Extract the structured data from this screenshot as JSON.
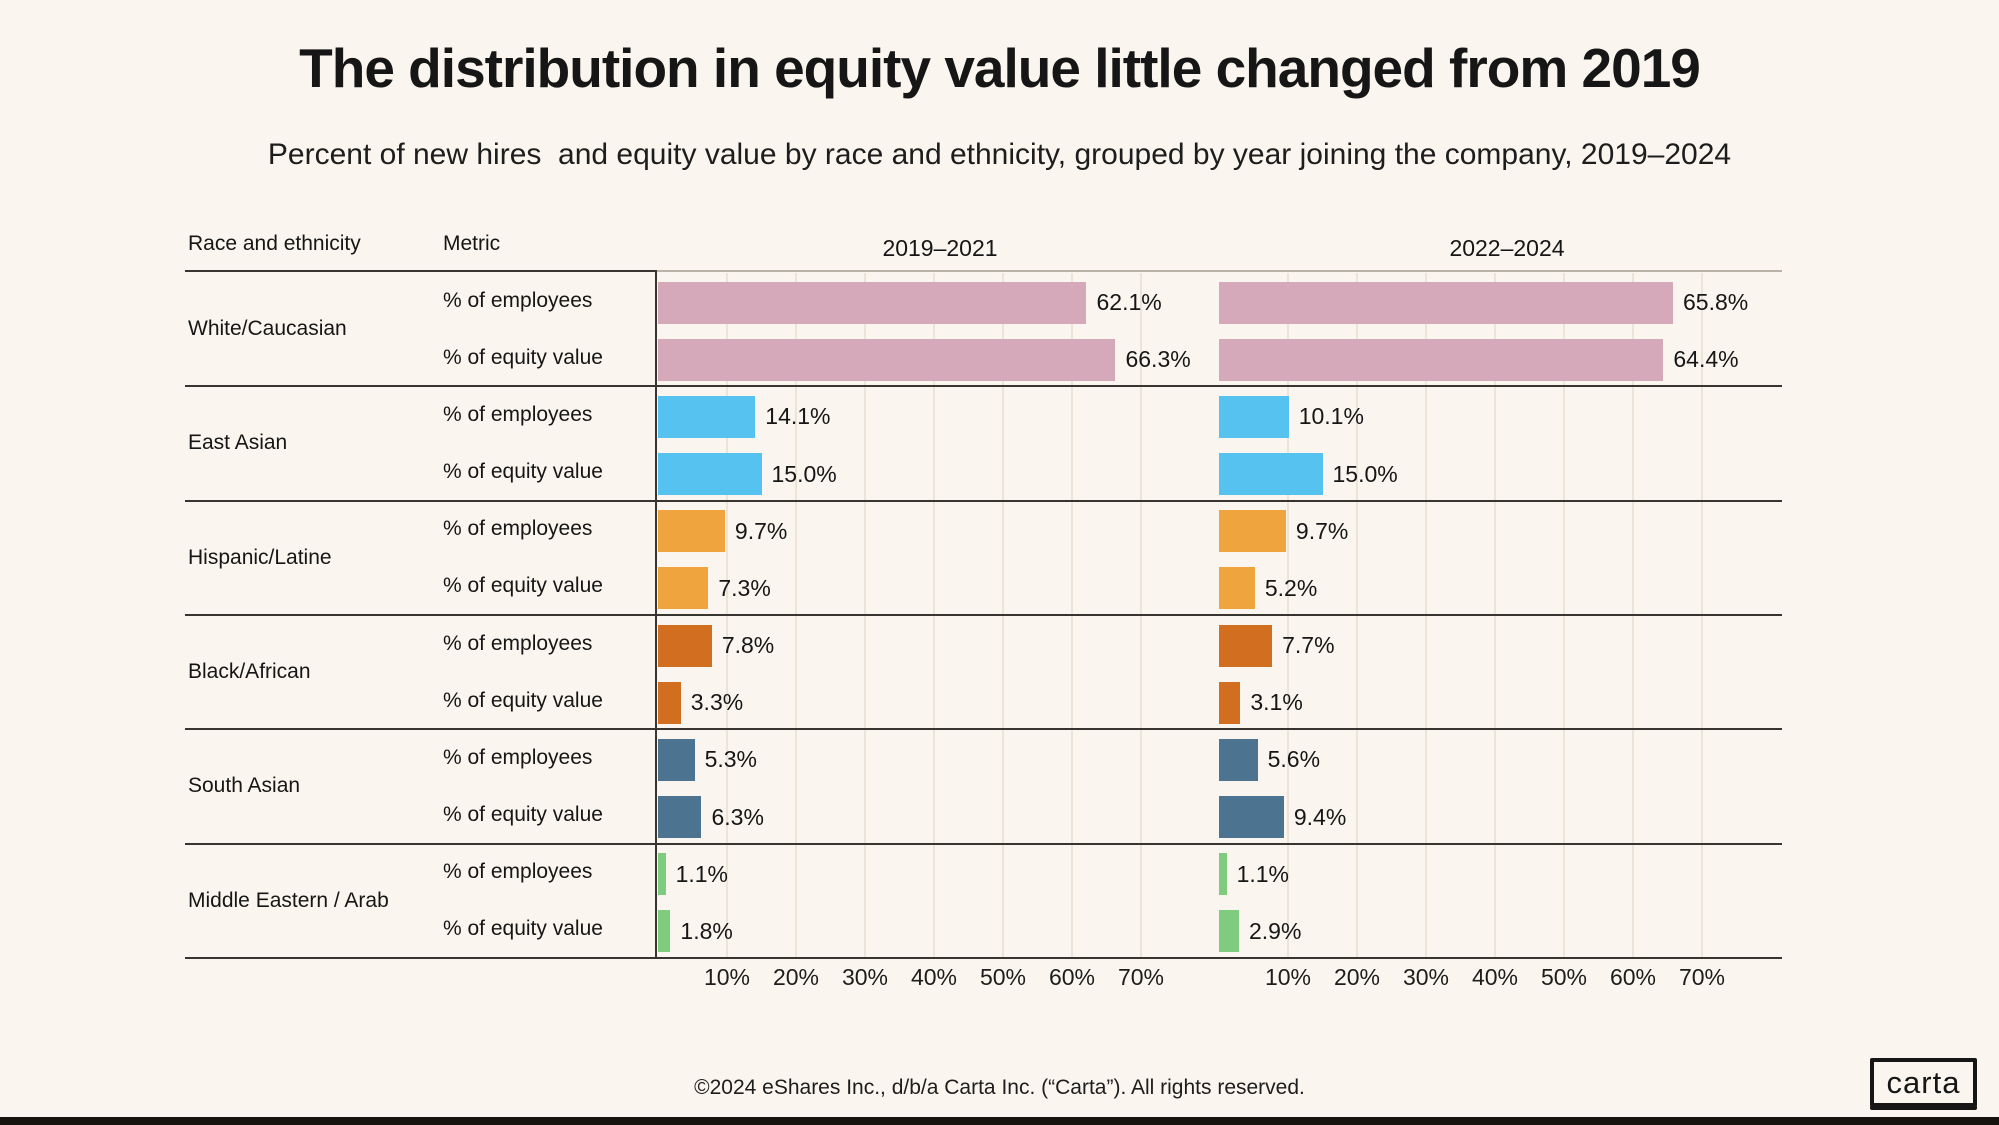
{
  "header": {
    "title": "The distribution in equity value little changed from 2019",
    "subtitle": "Percent of new hires  and equity value by race and ethnicity, grouped by year joining the company, 2019–2024"
  },
  "table": {
    "race_header": "Race and ethnicity",
    "metric_header": "Metric",
    "period_headers": [
      "2019–2021",
      "2022–2024"
    ]
  },
  "chart_data": {
    "type": "bar",
    "orientation": "horizontal",
    "unit": "%",
    "periods": [
      "2019–2021",
      "2022–2024"
    ],
    "metrics": [
      "% of employees",
      "% of equity value"
    ],
    "axis_ticks": [
      "10%",
      "20%",
      "30%",
      "40%",
      "50%",
      "60%",
      "70%"
    ],
    "axis_range": [
      0,
      70
    ],
    "grid": true,
    "groups": [
      {
        "race": "White/Caucasian",
        "color": "#d5a9b9",
        "values_by_period": [
          [
            62.1,
            66.3
          ],
          [
            65.8,
            64.4
          ]
        ]
      },
      {
        "race": "East Asian",
        "color": "#56c2ef",
        "values_by_period": [
          [
            14.1,
            15.0
          ],
          [
            10.1,
            15.0
          ]
        ]
      },
      {
        "race": "Hispanic/Latine",
        "color": "#f0a43e",
        "values_by_period": [
          [
            9.7,
            7.3
          ],
          [
            9.7,
            5.2
          ]
        ]
      },
      {
        "race": "Black/African",
        "color": "#d26e20",
        "values_by_period": [
          [
            7.8,
            3.3
          ],
          [
            7.7,
            3.1
          ]
        ]
      },
      {
        "race": "South Asian",
        "color": "#4c7490",
        "values_by_period": [
          [
            5.3,
            6.3
          ],
          [
            5.6,
            9.4
          ]
        ]
      },
      {
        "race": "Middle Eastern / Arab",
        "color": "#80cc7e",
        "values_by_period": [
          [
            1.1,
            1.8
          ],
          [
            1.1,
            2.9
          ]
        ]
      }
    ]
  },
  "footer": {
    "copyright": "©2024 eShares Inc., d/b/a Carta Inc. (“Carta”). All rights reserved.",
    "logo_text": "carta"
  },
  "colors": {
    "background": "#faf5ee",
    "text": "#161616",
    "separator": "#38342f",
    "gridline": "#ece4d9"
  }
}
